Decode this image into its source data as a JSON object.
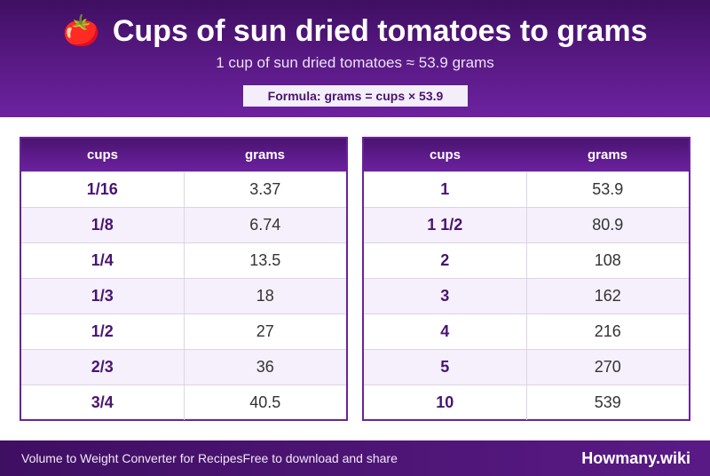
{
  "header": {
    "icon": "tomato-icon",
    "icon_glyph": "🍅",
    "title": "Cups of sun dried tomatoes to grams",
    "subtitle": "1 cup of sun dried tomatoes ≈ 53.9 grams",
    "formula": "Formula: grams = cups × 53.9"
  },
  "tables": {
    "left": {
      "col_cups": "cups",
      "col_grams": "grams",
      "rows": [
        {
          "cups": "1/16",
          "grams": "3.37"
        },
        {
          "cups": "1/8",
          "grams": "6.74"
        },
        {
          "cups": "1/4",
          "grams": "13.5"
        },
        {
          "cups": "1/3",
          "grams": "18"
        },
        {
          "cups": "1/2",
          "grams": "27"
        },
        {
          "cups": "2/3",
          "grams": "36"
        },
        {
          "cups": "3/4",
          "grams": "40.5"
        }
      ]
    },
    "right": {
      "col_cups": "cups",
      "col_grams": "grams",
      "rows": [
        {
          "cups": "1",
          "grams": "53.9"
        },
        {
          "cups": "1 1/2",
          "grams": "80.9"
        },
        {
          "cups": "2",
          "grams": "108"
        },
        {
          "cups": "3",
          "grams": "162"
        },
        {
          "cups": "4",
          "grams": "216"
        },
        {
          "cups": "5",
          "grams": "270"
        },
        {
          "cups": "10",
          "grams": "539"
        }
      ]
    }
  },
  "footer": {
    "text_a": "Volume to Weight Converter for Recipes",
    "text_b": "Free to download and share",
    "brand": "Howmany.wiki"
  },
  "colors": {
    "accent": "#5a1a86",
    "row_alt": "#f5f0fb"
  }
}
